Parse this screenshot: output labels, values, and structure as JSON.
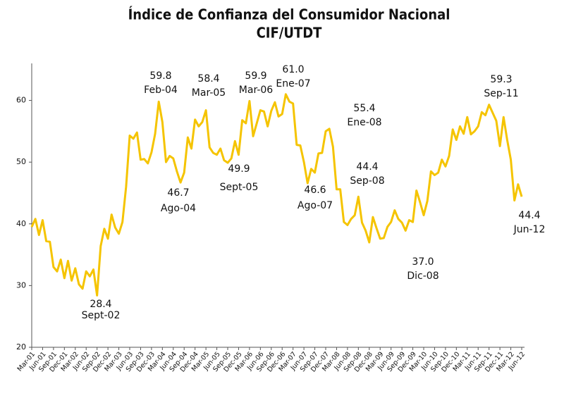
{
  "chart_data": {
    "type": "line",
    "title": "Índice de Confianza del Consumidor Nacional",
    "subtitle": "CIF/UTDT",
    "categories": [
      "Mar-01",
      null,
      null,
      "Jun-01",
      null,
      null,
      "Sep-01",
      null,
      null,
      "Dec-01",
      null,
      null,
      "Mar-02",
      null,
      null,
      "Jun-02",
      null,
      null,
      "Sep-02",
      null,
      null,
      "Dec-02",
      null,
      null,
      "Mar-03",
      null,
      null,
      "Jun-03",
      null,
      null,
      "Sep-03",
      null,
      null,
      "Dec-03",
      null,
      null,
      "Mar-04",
      null,
      null,
      "Jun-04",
      null,
      null,
      "Sep-04",
      null,
      null,
      "Dec-04",
      null,
      null,
      "Mar-05",
      null,
      null,
      "Jun-05",
      null,
      null,
      "Sep-05",
      null,
      null,
      "Dec-05",
      null,
      null,
      "Mar-06",
      null,
      null,
      "Jun-06",
      null,
      null,
      "Sep-06",
      null,
      null,
      "Dec-06",
      null,
      null,
      "Mar-07",
      null,
      null,
      "Jun-07",
      null,
      null,
      "Sep-07",
      null,
      null,
      "Dec-07",
      null,
      null,
      "Mar-08",
      null,
      null,
      "Jun-08",
      null,
      null,
      "Sep-08",
      null,
      null,
      "Dec-08",
      null,
      null,
      "Mar-09",
      null,
      null,
      "Jun-09",
      null,
      null,
      "Sep-09",
      null,
      null,
      "Dec-09",
      null,
      null,
      "Mar-10",
      null,
      null,
      "Jun-10",
      null,
      null,
      "Sep-10",
      null,
      null,
      "Dec-10",
      null,
      null,
      "Mar-11",
      null,
      null,
      "Jun-11",
      null,
      null,
      "Sep-11",
      null,
      null,
      "Dec-11",
      null,
      null,
      "Mar-12",
      null,
      null,
      "Jun-12"
    ],
    "values": [
      39.5,
      40.8,
      38.2,
      40.6,
      37.2,
      37.1,
      33,
      32.3,
      34.2,
      31.2,
      34,
      30.8,
      32.8,
      30.2,
      29.5,
      32.3,
      31.5,
      32.6,
      28.4,
      36.4,
      39.2,
      37.6,
      41.5,
      39.4,
      38.4,
      40.3,
      46,
      54.3,
      53.8,
      54.8,
      50.4,
      50.5,
      49.8,
      51.6,
      54.6,
      59.8,
      56.5,
      50,
      51,
      50.6,
      48.5,
      46.7,
      48.3,
      54,
      52.2,
      56.9,
      55.8,
      56.5,
      58.4,
      52.4,
      51.5,
      51.2,
      52.2,
      50.3,
      49.9,
      50.6,
      53.4,
      51.2,
      56.8,
      56.3,
      59.9,
      54.2,
      56.3,
      58.4,
      58.2,
      55.8,
      58.3,
      59.7,
      57.4,
      57.8,
      61,
      59.8,
      59.5,
      52.8,
      52.7,
      50,
      46.6,
      48.9,
      48.3,
      51.4,
      51.5,
      55,
      55.4,
      52.5,
      45.6,
      45.6,
      40.3,
      39.8,
      40.8,
      41.4,
      44.4,
      40.2,
      38.9,
      37,
      41.1,
      39.3,
      37.6,
      37.7,
      39.5,
      40.3,
      42.2,
      40.8,
      40.2,
      38.9,
      40.6,
      40.3,
      45.4,
      43.5,
      41.4,
      43.7,
      48.5,
      47.9,
      48.3,
      50.4,
      49.3,
      51,
      55.3,
      53.6,
      55.8,
      54.6,
      57.3,
      54.5,
      55,
      55.8,
      58.1,
      57.6,
      59.3,
      58,
      56.7,
      52.6,
      57.3,
      53.6,
      50.4,
      43.8,
      46.4,
      44.4
    ],
    "color": "#f5c400",
    "ylim": [
      20,
      66
    ],
    "yticks": [
      20,
      30,
      40,
      50,
      60
    ],
    "grid": false,
    "annotations": [
      {
        "value": "28.4",
        "label": "Sept-02"
      },
      {
        "value": "59.8",
        "label": "Feb-04"
      },
      {
        "value": "46.7",
        "label": "Ago-04"
      },
      {
        "value": "58.4",
        "label": "Mar-05"
      },
      {
        "value": "49.9",
        "label": "Sept-05"
      },
      {
        "value": "59.9",
        "label": "Mar-06"
      },
      {
        "value": "61.0",
        "label": "Ene-07"
      },
      {
        "value": "46.6",
        "label": "Ago-07"
      },
      {
        "value": "55.4",
        "label": "Ene-08"
      },
      {
        "value": "44.4",
        "label": "Sep-08"
      },
      {
        "value": "37.0",
        "label": "Dic-08"
      },
      {
        "value": "59.3",
        "label": "Sep-11"
      },
      {
        "value": "44.4",
        "label": "Jun-12"
      }
    ]
  }
}
